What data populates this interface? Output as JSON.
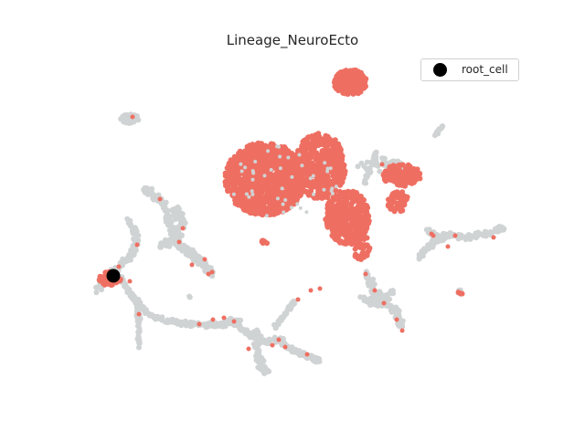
{
  "chart_data": {
    "type": "scatter",
    "title": "Lineage_NeuroEcto",
    "xlabel": "",
    "ylabel": "",
    "axes_visible": false,
    "grid": false,
    "legend": {
      "location": "top-right",
      "entries": [
        {
          "label": "root_cell",
          "color": "#000000"
        }
      ]
    },
    "colors": {
      "background_cells": "#d0d3d4",
      "lineage_cells": "#ee6f62",
      "root_cell": "#000000"
    },
    "series": [
      {
        "role": "background_cells",
        "approx_count": "thousands"
      },
      {
        "role": "lineage_cells",
        "approx_count": "thousands"
      },
      {
        "name": "root_cell",
        "role": "root_cell",
        "count": 1
      }
    ]
  }
}
